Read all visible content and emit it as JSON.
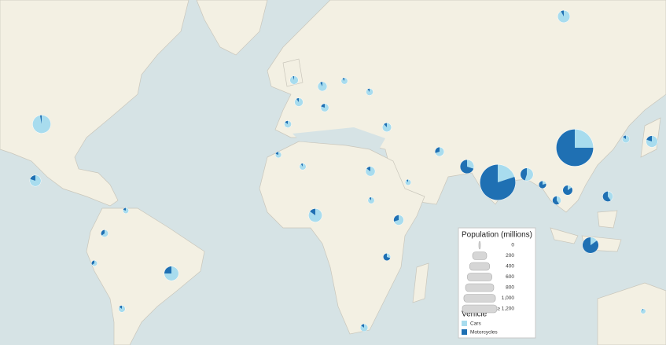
{
  "legend": {
    "size_title": "Population (millions)",
    "sizes": [
      0,
      200,
      400,
      600,
      800,
      {
        "value": 1000,
        "label": "1,000"
      },
      {
        "value": 1200,
        "label": "≥ 1,200"
      }
    ],
    "color_title": "Vehicle",
    "items": [
      {
        "name": "Cars",
        "color": "#a8dcee"
      },
      {
        "name": "Motorcycles",
        "color": "#1f70b3"
      }
    ]
  },
  "pies": [
    {
      "population": 320,
      "cars": 97,
      "motorcycles": 3
    },
    {
      "population": 120,
      "cars": 80,
      "motorcycles": 20
    },
    {
      "population": 200,
      "cars": 75,
      "motorcycles": 25
    },
    {
      "population": 48,
      "cars": 65,
      "motorcycles": 35
    },
    {
      "population": 42,
      "cars": 85,
      "motorcycles": 15
    },
    {
      "population": 30,
      "cars": 65,
      "motorcycles": 35
    },
    {
      "population": 30,
      "cars": 80,
      "motorcycles": 20
    },
    {
      "population": 64,
      "cars": 95,
      "motorcycles": 5
    },
    {
      "population": 66,
      "cars": 90,
      "motorcycles": 10
    },
    {
      "population": 81,
      "cars": 92,
      "motorcycles": 8
    },
    {
      "population": 46,
      "cars": 85,
      "motorcycles": 15
    },
    {
      "population": 60,
      "cars": 80,
      "motorcycles": 20
    },
    {
      "population": 38,
      "cars": 90,
      "motorcycles": 10
    },
    {
      "population": 143,
      "cars": 92,
      "motorcycles": 8
    },
    {
      "population": 45,
      "cars": 90,
      "motorcycles": 10
    },
    {
      "population": 76,
      "cars": 88,
      "motorcycles": 12
    },
    {
      "population": 78,
      "cars": 70,
      "motorcycles": 30
    },
    {
      "population": 185,
      "cars": 30,
      "motorcycles": 70
    },
    {
      "population": 1250,
      "cars": 20,
      "motorcycles": 80
    },
    {
      "population": 1360,
      "cars": 25,
      "motorcycles": 75
    },
    {
      "population": 127,
      "cars": 80,
      "motorcycles": 20
    },
    {
      "population": 50,
      "cars": 85,
      "motorcycles": 15
    },
    {
      "population": 158,
      "cars": 55,
      "motorcycles": 45
    },
    {
      "population": 53,
      "cars": 20,
      "motorcycles": 80
    },
    {
      "population": 67,
      "cars": 40,
      "motorcycles": 60
    },
    {
      "population": 100,
      "cars": 40,
      "motorcycles": 60
    },
    {
      "population": 250,
      "cars": 15,
      "motorcycles": 85
    },
    {
      "population": 175,
      "cars": 85,
      "motorcycles": 15
    },
    {
      "population": 95,
      "cars": 70,
      "motorcycles": 30
    },
    {
      "population": 85,
      "cars": 85,
      "motorcycles": 15
    },
    {
      "population": 50,
      "cars": 30,
      "motorcycles": 70
    },
    {
      "population": 53,
      "cars": 85,
      "motorcycles": 15
    },
    {
      "population": 38,
      "cars": 90,
      "motorcycles": 10
    },
    {
      "population": 30,
      "cars": 90,
      "motorcycles": 10
    },
    {
      "population": 39,
      "cars": 90,
      "motorcycles": 10
    },
    {
      "population": 33,
      "cars": 80,
      "motorcycles": 20
    },
    {
      "population": 23,
      "cars": 95,
      "motorcycles": 5
    },
    {
      "population": 90,
      "cars": 15,
      "motorcycles": 85
    }
  ]
}
